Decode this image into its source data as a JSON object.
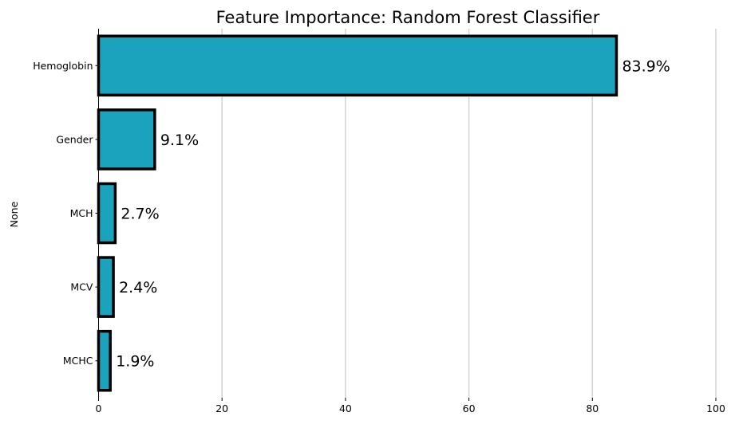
{
  "chart_data": {
    "type": "bar",
    "orientation": "horizontal",
    "title": "Feature Importance: Random Forest Classifier",
    "xlabel": "",
    "ylabel": "None",
    "categories": [
      "Hemoglobin",
      "Gender",
      "MCH",
      "MCV",
      "MCHC"
    ],
    "values": [
      83.9,
      9.1,
      2.7,
      2.4,
      1.9
    ],
    "data_labels": [
      "83.9%",
      "9.1%",
      "2.7%",
      "2.4%",
      "1.9%"
    ],
    "xlim": [
      0,
      100
    ],
    "xticks": [
      0,
      20,
      40,
      60,
      80,
      100
    ],
    "grid": "vertical",
    "legend": "none",
    "colors": {
      "bar_fill": "#1ba3be",
      "bar_edge": "#000000",
      "grid": "#d3d3d3"
    }
  }
}
